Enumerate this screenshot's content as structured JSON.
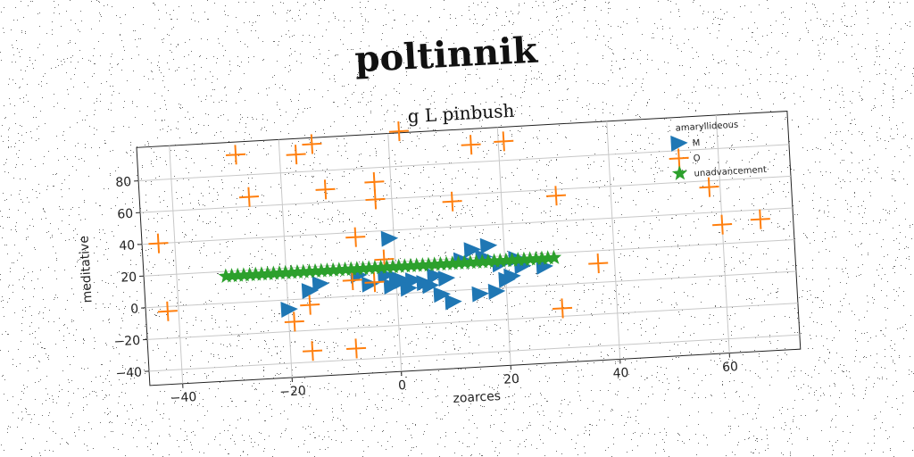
{
  "suptitle": "poltinnik",
  "chart_data": {
    "type": "scatter",
    "title": "g L pinbush",
    "xlabel": "zoarces",
    "ylabel": "meditative",
    "xlim": [
      -46,
      73
    ],
    "ylim": [
      -49,
      101
    ],
    "xticks": [
      -40,
      -20,
      0,
      20,
      40,
      60
    ],
    "yticks": [
      -40,
      -20,
      0,
      20,
      40,
      60,
      80
    ],
    "grid": true,
    "legend": {
      "title": "amaryllideous",
      "position": "top-right"
    },
    "series": [
      {
        "name": "M",
        "marker": "triangle-right",
        "color": "#1f77b4",
        "points": [
          [
            -20,
            -6
          ],
          [
            -16,
            5
          ],
          [
            -14,
            9
          ],
          [
            -7,
            13
          ],
          [
            -5,
            7
          ],
          [
            -2,
            12
          ],
          [
            -1,
            35
          ],
          [
            -1,
            5
          ],
          [
            0,
            10
          ],
          [
            1,
            8
          ],
          [
            2,
            3
          ],
          [
            3,
            8
          ],
          [
            5,
            6
          ],
          [
            6,
            4
          ],
          [
            7,
            10
          ],
          [
            8,
            -2
          ],
          [
            9,
            8
          ],
          [
            10,
            -7
          ],
          [
            12,
            19
          ],
          [
            14,
            25
          ],
          [
            15,
            -3
          ],
          [
            16,
            20
          ],
          [
            17,
            27
          ],
          [
            18,
            -2
          ],
          [
            19,
            15
          ],
          [
            20,
            5
          ],
          [
            21,
            7
          ],
          [
            22,
            18
          ],
          [
            23,
            13
          ],
          [
            27,
            12
          ]
        ]
      },
      {
        "name": "O",
        "marker": "plus",
        "color": "#ff7f0e",
        "points": [
          [
            -43,
            40
          ],
          [
            -42,
            -3
          ],
          [
            -28,
            93
          ],
          [
            -26,
            66
          ],
          [
            -17,
            91
          ],
          [
            -14,
            97
          ],
          [
            -19,
            -14
          ],
          [
            -16,
            -4
          ],
          [
            -16,
            -33
          ],
          [
            -8,
            -33
          ],
          [
            -7,
            37
          ],
          [
            -12,
            68
          ],
          [
            -3,
            71
          ],
          [
            -3,
            60
          ],
          [
            -2,
            22
          ],
          [
            -4,
            8
          ],
          [
            -8,
            10
          ],
          [
            2,
            102
          ],
          [
            11,
            56
          ],
          [
            15,
            91
          ],
          [
            21,
            92
          ],
          [
            30,
            56
          ],
          [
            30,
            -15
          ],
          [
            37,
            12
          ],
          [
            58,
            56
          ],
          [
            60,
            32
          ],
          [
            67,
            34
          ]
        ]
      },
      {
        "name": "unadvancement",
        "marker": "star",
        "color": "#2ca02c",
        "line": {
          "from": [
            -31,
            17
          ],
          "to": [
            29,
            17
          ],
          "count": 56
        }
      }
    ]
  }
}
